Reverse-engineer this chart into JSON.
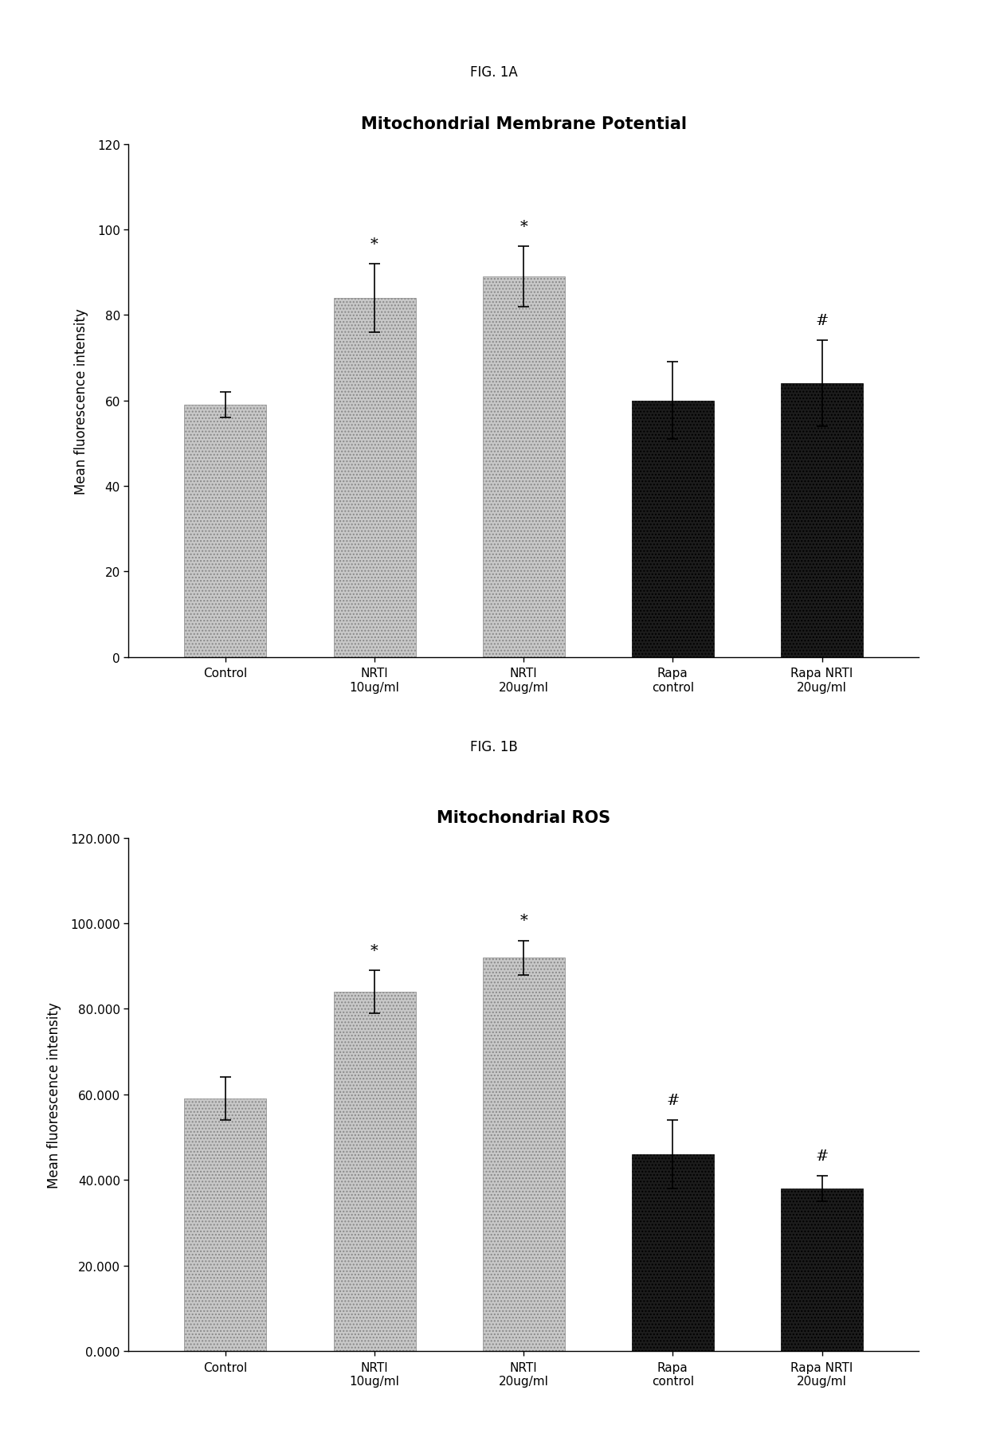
{
  "fig1a": {
    "title": "Mitochondrial Membrane Potential",
    "fig_label": "FIG. 1A",
    "ylabel": "Mean fluorescence intensity",
    "categories": [
      "Control",
      "NRTI\n10ug/ml",
      "NRTI\n20ug/ml",
      "Rapa\ncontrol",
      "Rapa NRTI\n20ug/ml"
    ],
    "values": [
      59,
      84,
      89,
      60,
      64
    ],
    "errors": [
      3,
      8,
      7,
      9,
      10
    ],
    "annotations": [
      "",
      "*",
      "*",
      "",
      "#"
    ],
    "ylim": [
      0,
      120
    ],
    "yticks": [
      0,
      20,
      40,
      60,
      80,
      100,
      120
    ]
  },
  "fig1b": {
    "title": "Mitochondrial ROS",
    "fig_label": "FIG. 1B",
    "ylabel": "Mean fluorescence intensity",
    "categories": [
      "Control",
      "NRTI\n10ug/ml",
      "NRTI\n20ug/ml",
      "Rapa\ncontrol",
      "Rapa NRTI\n20ug/ml"
    ],
    "values": [
      59000,
      84000,
      92000,
      46000,
      38000
    ],
    "errors": [
      5000,
      5000,
      4000,
      8000,
      3000
    ],
    "annotations": [
      "",
      "*",
      "*",
      "#",
      "#"
    ],
    "ylim": [
      0,
      120000
    ],
    "ytick_values": [
      0,
      20000,
      40000,
      60000,
      80000,
      100000,
      120000
    ],
    "ytick_labels": [
      "0.000",
      "20.000",
      "40.000",
      "60.000",
      "80.000",
      "100.000",
      "120.000"
    ]
  },
  "light_bar_color": "#c8c8c8",
  "dark_bar_color": "#1c1c1c",
  "light_hatch": "....",
  "dark_hatch": "....",
  "fig_label_fontsize": 12,
  "title_fontsize": 15,
  "ylabel_fontsize": 12,
  "tick_fontsize": 11,
  "annot_fontsize": 14,
  "bar_width": 0.55
}
